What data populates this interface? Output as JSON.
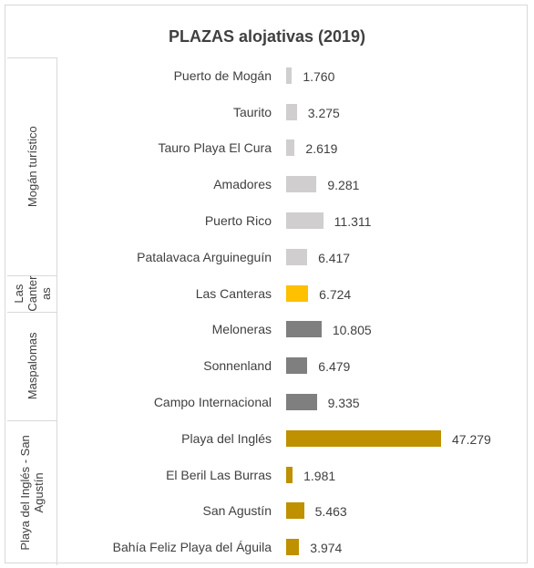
{
  "chart_data": {
    "type": "bar",
    "title": "PLAZAS alojativas (2019)",
    "groups": [
      {
        "name": "Mogán turístico",
        "color": "#d0cece",
        "categories": [
          "Puerto de Mogán",
          "Taurito",
          "Tauro Playa El Cura",
          "Amadores",
          "Puerto Rico",
          "Patalavaca Arguineguín"
        ],
        "values": [
          1760,
          3275,
          2619,
          9281,
          11311,
          6417
        ],
        "value_labels": [
          "1.760",
          "3.275",
          "2.619",
          "9.281",
          "11.311",
          "6.417"
        ]
      },
      {
        "name": "Las Canteras",
        "color": "#ffc000",
        "categories": [
          "Las Canteras"
        ],
        "values": [
          6724
        ],
        "value_labels": [
          "6.724"
        ]
      },
      {
        "name": "Maspalomas",
        "color": "#7f7f7f",
        "categories": [
          "Meloneras",
          "Sonnenland",
          "Campo Internacional"
        ],
        "values": [
          10805,
          6479,
          9335
        ],
        "value_labels": [
          "10.805",
          "6.479",
          "9.335"
        ]
      },
      {
        "name": "Playa del Inglés - San Agustín",
        "color": "#bf9000",
        "categories": [
          "Playa del Inglés",
          "El Beril Las Burras",
          "San Agustín",
          "Bahía Feliz Playa del Águila"
        ],
        "values": [
          47279,
          1981,
          5463,
          3974
        ],
        "value_labels": [
          "47.279",
          "1.981",
          "5.463",
          "3.974"
        ]
      }
    ]
  }
}
